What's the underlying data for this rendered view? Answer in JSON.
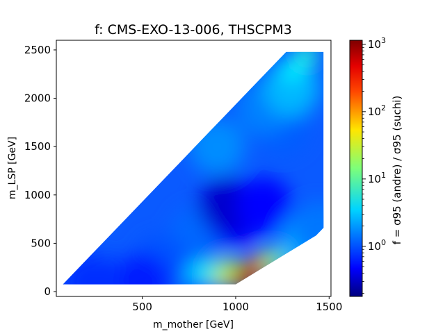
{
  "chart_data": {
    "type": "heatmap",
    "title": "f:  CMS-EXO-13-006,  THSCPM3",
    "xlabel": "m_mother  [GeV]",
    "ylabel": "m_LSP  [GeV]",
    "xlim": [
      40,
      1510
    ],
    "ylim": [
      -50,
      2600
    ],
    "xticks": [
      500,
      1000,
      1500
    ],
    "yticks": [
      0,
      500,
      1000,
      1500,
      2000,
      2500
    ],
    "grid": false,
    "colorscale": "jet",
    "colorbar": {
      "label": "f = σ95 (andre) / σ95 (suchi)",
      "scale": "log",
      "range": [
        0.18,
        1150
      ],
      "ticks": [
        "10^0",
        "10^1",
        "10^2",
        "10^3"
      ],
      "tick_values": [
        1,
        10,
        100,
        1000
      ]
    },
    "region_outline_mother_lsp": [
      [
        75,
        75
      ],
      [
        1270,
        2480
      ],
      [
        1470,
        2480
      ],
      [
        1470,
        660
      ],
      [
        1430,
        580
      ],
      [
        1000,
        75
      ]
    ],
    "values": [
      {
        "mother": 800,
        "lsp": 600,
        "f": 1.3
      },
      {
        "mother": 1000,
        "lsp": 750,
        "f": 0.5
      },
      {
        "mother": 950,
        "lsp": 900,
        "f": 0.35
      },
      {
        "mother": 1150,
        "lsp": 900,
        "f": 0.55
      },
      {
        "mother": 600,
        "lsp": 300,
        "f": 1.1
      },
      {
        "mother": 900,
        "lsp": 1500,
        "f": 1.8
      },
      {
        "mother": 1250,
        "lsp": 1700,
        "f": 1.2
      },
      {
        "mother": 1150,
        "lsp": 1900,
        "f": 1.6
      },
      {
        "mother": 1300,
        "lsp": 2100,
        "f": 2.6
      },
      {
        "mother": 1380,
        "lsp": 2450,
        "f": 7.0
      },
      {
        "mother": 1300,
        "lsp": 2300,
        "f": 4.5
      },
      {
        "mother": 300,
        "lsp": 90,
        "f": 1.0
      },
      {
        "mother": 500,
        "lsp": 110,
        "f": 0.7
      },
      {
        "mother": 220,
        "lsp": 100,
        "f": 0.8
      },
      {
        "mother": 920,
        "lsp": 150,
        "f": 60
      },
      {
        "mother": 860,
        "lsp": 200,
        "f": 8
      },
      {
        "mother": 800,
        "lsp": 180,
        "f": 4
      },
      {
        "mother": 970,
        "lsp": 230,
        "f": 25
      },
      {
        "mother": 1040,
        "lsp": 130,
        "f": 600
      },
      {
        "mother": 1080,
        "lsp": 170,
        "f": 900
      },
      {
        "mother": 1130,
        "lsp": 280,
        "f": 150
      },
      {
        "mother": 1200,
        "lsp": 320,
        "f": 15
      },
      {
        "mother": 1300,
        "lsp": 430,
        "f": 4
      },
      {
        "mother": 1400,
        "lsp": 560,
        "f": 2.3
      },
      {
        "mother": 1450,
        "lsp": 640,
        "f": 1.5
      }
    ]
  }
}
